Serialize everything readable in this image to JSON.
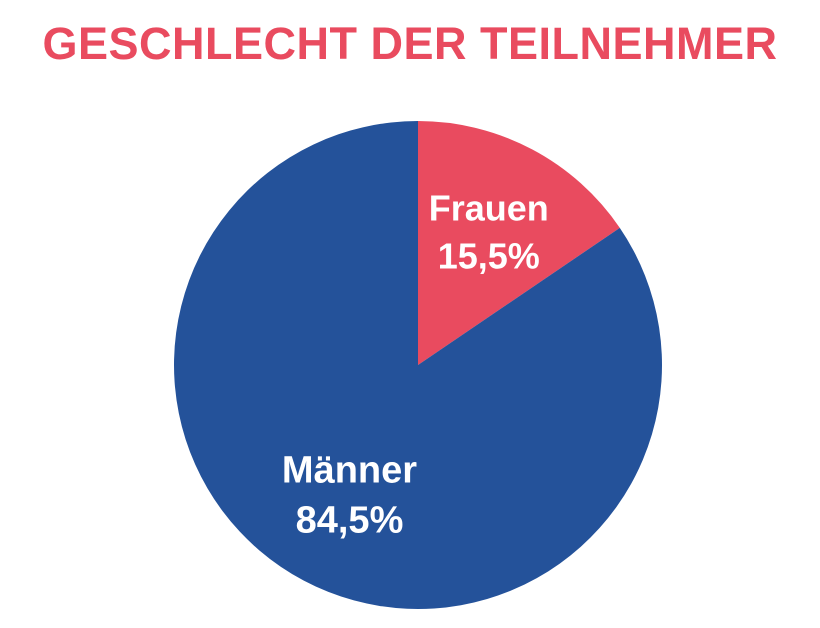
{
  "chart_data": {
    "type": "pie",
    "title": "GESCHLECHT DER TEILNEHMER",
    "slices": [
      {
        "name": "Frauen",
        "value": 15.5,
        "display_value": "15,5%",
        "color": "#e94b5f"
      },
      {
        "name": "Männer",
        "value": 84.5,
        "display_value": "84,5%",
        "color": "#24529a"
      }
    ],
    "start_angle_deg": 0,
    "direction": "clockwise",
    "title_color": "#e94b5f",
    "background": "#ffffff"
  }
}
